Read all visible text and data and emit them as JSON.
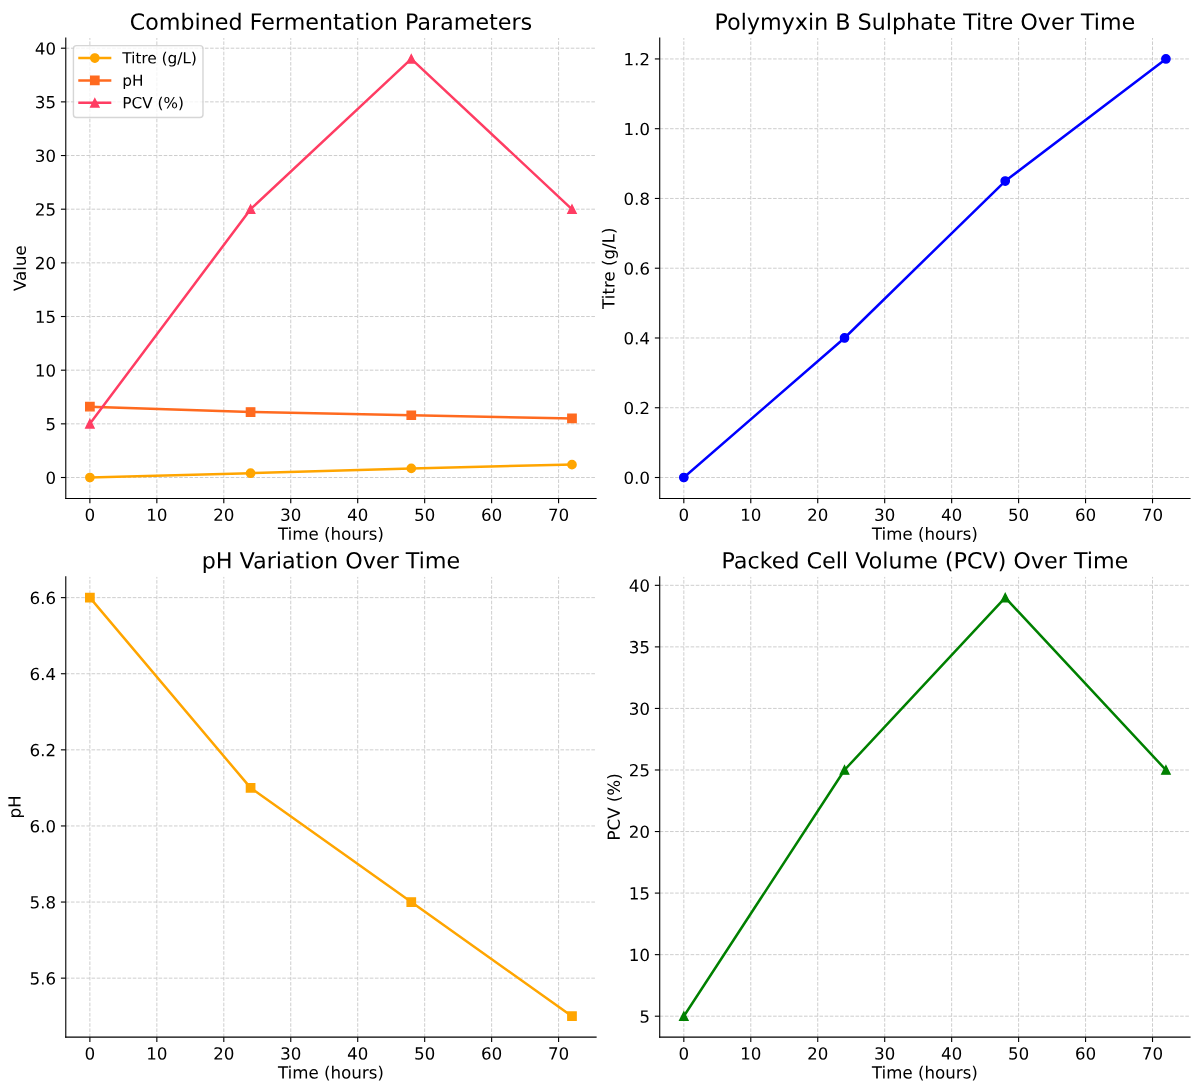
{
  "chart_data": [
    {
      "type": "line",
      "title": "Combined Fermentation Parameters",
      "xlabel": "Time (hours)",
      "ylabel": "Value",
      "x": [
        0,
        24,
        48,
        72
      ],
      "series": [
        {
          "name": "Titre (g/L)",
          "color": "#ffa500",
          "values": [
            0,
            0.4,
            0.85,
            1.2
          ],
          "marker": "circle"
        },
        {
          "name": "pH",
          "color": "#ff6a1f",
          "values": [
            6.6,
            6.1,
            5.8,
            5.5
          ],
          "marker": "square"
        },
        {
          "name": "PCV (%)",
          "color": "#ff3d63",
          "values": [
            5,
            25,
            39,
            25
          ],
          "marker": "triangle"
        }
      ],
      "xlim": [
        -3.6,
        75.6
      ],
      "xticks": [
        0,
        10,
        20,
        30,
        40,
        50,
        60,
        70
      ],
      "ylim": [
        -1.95,
        40.95
      ],
      "yticks": [
        0,
        5,
        10,
        15,
        20,
        25,
        30,
        35,
        40
      ],
      "grid": true,
      "legend": "top left",
      "line_style": "solid"
    },
    {
      "type": "line",
      "title": "Polymyxin B Sulphate Titre Over Time",
      "xlabel": "Time (hours)",
      "ylabel": "Titre (g/L)",
      "x": [
        0,
        24,
        48,
        72
      ],
      "series": [
        {
          "color": "#0000ff",
          "values": [
            0,
            0.4,
            0.85,
            1.2
          ],
          "marker": "circle"
        }
      ],
      "xlim": [
        -3.6,
        75.6
      ],
      "xticks": [
        0,
        10,
        20,
        30,
        40,
        50,
        60,
        70
      ],
      "ylim": [
        -0.06,
        1.26
      ],
      "yticks": [
        {
          "value": 0,
          "label": "0.0"
        },
        0.2,
        0.4,
        0.6,
        0.8,
        {
          "value": 1,
          "label": "1.0"
        },
        1.2
      ],
      "grid": true,
      "line_style": "solid"
    },
    {
      "type": "line",
      "title": "pH Variation Over Time",
      "xlabel": "Time (hours)",
      "ylabel": "pH",
      "x": [
        0,
        24,
        48,
        72
      ],
      "series": [
        {
          "color": "#ffa500",
          "values": [
            6.6,
            6.1,
            5.8,
            5.5
          ],
          "marker": "square"
        }
      ],
      "xlim": [
        -3.6,
        75.6
      ],
      "xticks": [
        0,
        10,
        20,
        30,
        40,
        50,
        60,
        70
      ],
      "ylim": [
        5.445,
        6.655
      ],
      "yticks": [
        5.6,
        5.8,
        {
          "value": 6,
          "label": "6.0"
        },
        6.2,
        6.4,
        6.6
      ],
      "grid": true,
      "line_style": "solid"
    },
    {
      "type": "line",
      "title": "Packed Cell Volume (PCV) Over Time",
      "xlabel": "Time (hours)",
      "ylabel": "PCV (%)",
      "x": [
        0,
        24,
        48,
        72
      ],
      "series": [
        {
          "color": "#008000",
          "values": [
            5,
            25,
            39,
            25
          ],
          "marker": "triangle"
        }
      ],
      "xlim": [
        -3.6,
        75.6
      ],
      "xticks": [
        0,
        10,
        20,
        30,
        40,
        50,
        60,
        70
      ],
      "ylim": [
        3.3,
        40.7
      ],
      "yticks": [
        5,
        10,
        15,
        20,
        25,
        30,
        35,
        40
      ],
      "grid": true,
      "line_style": "solid"
    }
  ]
}
